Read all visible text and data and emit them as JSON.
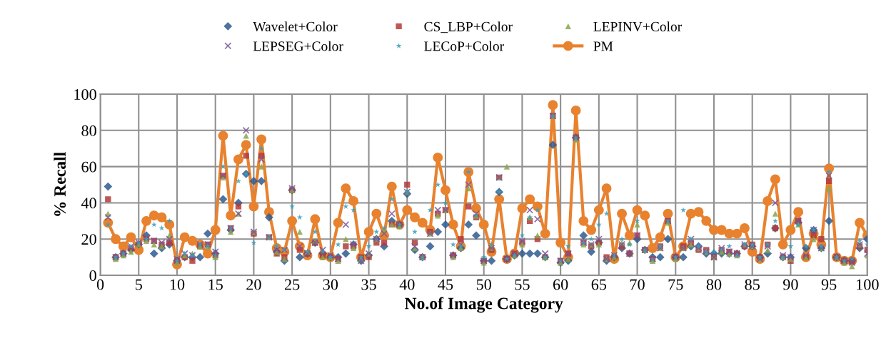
{
  "chart_data": {
    "type": "scatter",
    "xlabel": "No.of Image Category",
    "ylabel": "% Recall",
    "x": [
      1,
      2,
      3,
      4,
      5,
      6,
      7,
      8,
      9,
      10,
      11,
      12,
      13,
      14,
      15,
      16,
      17,
      18,
      19,
      20,
      21,
      22,
      23,
      24,
      25,
      26,
      27,
      28,
      29,
      30,
      31,
      32,
      33,
      34,
      35,
      36,
      37,
      38,
      39,
      40,
      41,
      42,
      43,
      44,
      45,
      46,
      47,
      48,
      49,
      50,
      51,
      52,
      53,
      54,
      55,
      56,
      57,
      58,
      59,
      60,
      61,
      62,
      63,
      64,
      65,
      66,
      67,
      68,
      69,
      70,
      71,
      72,
      73,
      74,
      75,
      76,
      77,
      78,
      79,
      80,
      81,
      82,
      83,
      84,
      85,
      86,
      87,
      88,
      89,
      90,
      91,
      92,
      93,
      94,
      95,
      96,
      97,
      98,
      99,
      100
    ],
    "xlim": [
      0,
      100
    ],
    "xticks": [
      0,
      5,
      10,
      15,
      20,
      25,
      30,
      35,
      40,
      45,
      50,
      55,
      60,
      65,
      70,
      75,
      80,
      85,
      90,
      95,
      100
    ],
    "ylim": [
      0,
      100
    ],
    "yticks": [
      0,
      20,
      40,
      60,
      80,
      100
    ],
    "grid": true,
    "legend": "top",
    "series": [
      {
        "name": "Wavelet+Color",
        "color": "#2e5b8f",
        "marker": "diamond",
        "values": [
          49,
          10,
          12,
          14,
          17,
          22,
          12,
          15,
          17,
          8,
          10,
          10,
          10,
          23,
          12,
          42,
          25,
          40,
          56,
          52,
          52,
          32,
          13,
          8,
          47,
          10,
          12,
          18,
          12,
          10,
          10,
          12,
          17,
          8,
          11,
          20,
          16,
          30,
          28,
          45,
          14,
          10,
          16,
          24,
          28,
          11,
          15,
          28,
          22,
          8,
          8,
          46,
          9,
          11,
          12,
          12,
          12,
          10,
          72,
          7,
          8,
          76,
          22,
          13,
          18,
          8,
          10,
          15,
          12,
          20,
          14,
          10,
          10,
          20,
          10,
          10,
          16,
          16,
          12,
          12,
          12,
          12,
          12,
          16,
          16,
          10,
          12,
          26,
          10,
          10,
          29,
          15,
          25,
          15,
          30,
          10,
          8,
          8,
          15,
          20
        ]
      },
      {
        "name": "CS_LBP+Color",
        "color": "#b13b3b",
        "marker": "square",
        "values": [
          42,
          10,
          12,
          15,
          17,
          20,
          19,
          17,
          18,
          8,
          10,
          8,
          16,
          17,
          11,
          55,
          26,
          38,
          66,
          23,
          66,
          21,
          12,
          10,
          47,
          14,
          12,
          18,
          11,
          10,
          9,
          16,
          16,
          10,
          10,
          18,
          18,
          28,
          28,
          50,
          18,
          10,
          24,
          34,
          36,
          11,
          20,
          38,
          32,
          8,
          14,
          54,
          9,
          12,
          18,
          30,
          20,
          10,
          88,
          8,
          12,
          76,
          18,
          16,
          18,
          10,
          10,
          16,
          12,
          22,
          14,
          9,
          16,
          30,
          10,
          16,
          18,
          14,
          14,
          10,
          14,
          13,
          12,
          16,
          17,
          10,
          17,
          26,
          10,
          8,
          30,
          10,
          22,
          20,
          52,
          10,
          8,
          8,
          16,
          14
        ]
      },
      {
        "name": "LEPINV+Color",
        "color": "#8aa64b",
        "marker": "triangle",
        "values": [
          34,
          9,
          11,
          13,
          17,
          19,
          17,
          16,
          22,
          7,
          11,
          12,
          16,
          16,
          10,
          54,
          24,
          34,
          77,
          24,
          60,
          21,
          13,
          9,
          47,
          24,
          13,
          19,
          10,
          10,
          8,
          20,
          15,
          9,
          12,
          20,
          25,
          28,
          27,
          46,
          15,
          10,
          23,
          33,
          36,
          10,
          15,
          48,
          33,
          7,
          15,
          54,
          60,
          11,
          17,
          32,
          22,
          10,
          88,
          7,
          9,
          75,
          17,
          17,
          17,
          9,
          10,
          18,
          18,
          28,
          14,
          8,
          15,
          29,
          9,
          15,
          17,
          15,
          13,
          10,
          13,
          12,
          11,
          17,
          16,
          9,
          14,
          34,
          10,
          9,
          28,
          10,
          20,
          15,
          48,
          10,
          7,
          5,
          17,
          11
        ]
      },
      {
        "name": "LEPSEG+Color",
        "color": "#7a559b",
        "marker": "cross",
        "values": [
          32,
          10,
          12,
          16,
          18,
          21,
          19,
          18,
          20,
          9,
          12,
          11,
          17,
          17,
          13,
          55,
          26,
          34,
          80,
          24,
          64,
          21,
          14,
          14,
          48,
          16,
          12,
          18,
          14,
          11,
          9,
          28,
          17,
          8,
          12,
          20,
          23,
          34,
          28,
          46,
          16,
          10,
          23,
          36,
          36,
          11,
          17,
          50,
          34,
          8,
          15,
          54,
          9,
          12,
          19,
          36,
          31,
          12,
          88,
          8,
          12,
          76,
          18,
          17,
          20,
          9,
          11,
          17,
          12,
          22,
          14,
          9,
          15,
          30,
          10,
          15,
          20,
          15,
          13,
          10,
          15,
          13,
          12,
          17,
          16,
          9,
          16,
          40,
          11,
          10,
          30,
          11,
          25,
          15,
          55,
          10,
          8,
          7,
          17,
          12
        ]
      },
      {
        "name": "LECoP+Color",
        "color": "#3a9fb8",
        "marker": "star",
        "values": [
          28,
          10,
          12,
          16,
          18,
          20,
          28,
          26,
          30,
          8,
          12,
          11,
          17,
          16,
          11,
          60,
          26,
          52,
          56,
          18,
          70,
          21,
          16,
          14,
          38,
          32,
          13,
          24,
          13,
          10,
          17,
          38,
          36,
          10,
          16,
          24,
          26,
          42,
          28,
          46,
          24,
          10,
          36,
          50,
          40,
          17,
          16,
          57,
          33,
          10,
          17,
          46,
          9,
          11,
          22,
          32,
          36,
          10,
          88,
          8,
          16,
          76,
          18,
          20,
          28,
          34,
          11,
          20,
          17,
          30,
          14,
          9,
          16,
          30,
          10,
          36,
          20,
          16,
          13,
          13,
          14,
          16,
          11,
          17,
          17,
          10,
          17,
          30,
          10,
          16,
          28,
          16,
          25,
          16,
          57,
          10,
          8,
          9,
          19,
          17
        ]
      },
      {
        "name": "PM",
        "type": "line",
        "color": "#e8822f",
        "marker": "circle",
        "values": [
          29,
          20,
          16,
          21,
          14,
          30,
          33,
          32,
          28,
          6,
          21,
          19,
          17,
          12,
          25,
          77,
          33,
          64,
          72,
          38,
          75,
          35,
          15,
          13,
          30,
          16,
          11,
          31,
          11,
          10,
          29,
          48,
          41,
          10,
          24,
          34,
          22,
          49,
          28,
          36,
          32,
          29,
          25,
          65,
          47,
          28,
          16,
          57,
          37,
          28,
          13,
          42,
          9,
          12,
          37,
          42,
          38,
          23,
          94,
          18,
          10,
          91,
          30,
          25,
          36,
          48,
          9,
          34,
          22,
          36,
          33,
          15,
          21,
          34,
          10,
          16,
          34,
          35,
          30,
          25,
          25,
          23,
          23,
          26,
          13,
          9,
          41,
          53,
          17,
          25,
          35,
          10,
          23,
          17,
          59,
          10,
          8,
          8,
          29,
          22
        ]
      }
    ]
  }
}
